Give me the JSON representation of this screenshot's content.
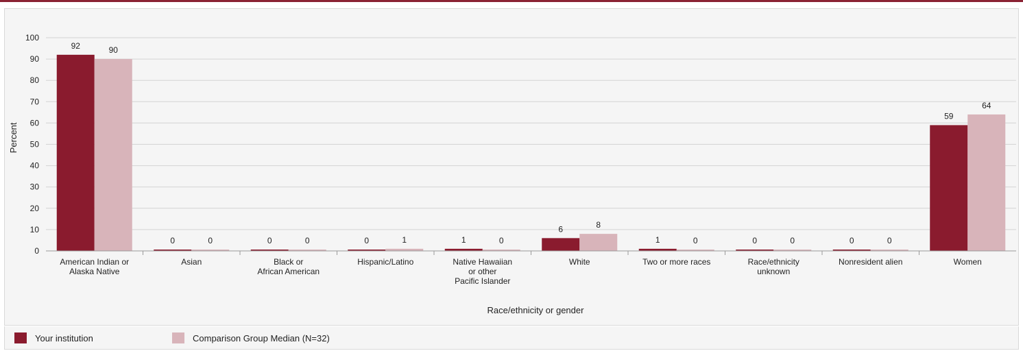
{
  "colors": {
    "your_institution": "#8a1b2e",
    "comparison": "#d8b4ba",
    "accent": "#8a2233"
  },
  "legend": {
    "your_institution": "Your institution",
    "comparison": "Comparison Group Median (N=32)"
  },
  "chart_data": {
    "type": "bar",
    "xlabel": "Race/ethnicity or gender",
    "ylabel": "Percent",
    "ylim": [
      0,
      100
    ],
    "yticks": [
      0,
      10,
      20,
      30,
      40,
      50,
      60,
      70,
      80,
      90,
      100
    ],
    "grid": true,
    "legend_position": "bottom-left",
    "categories": [
      [
        "American Indian or",
        "Alaska Native"
      ],
      [
        "Asian"
      ],
      [
        "Black or",
        "African American"
      ],
      [
        "Hispanic/Latino"
      ],
      [
        "Native Hawaiian",
        "or other",
        "Pacific Islander"
      ],
      [
        "White"
      ],
      [
        "Two or more races"
      ],
      [
        "Race/ethnicity",
        "unknown"
      ],
      [
        "Nonresident alien"
      ],
      [
        "Women"
      ]
    ],
    "series": [
      {
        "name": "Your institution",
        "values": [
          92,
          0,
          0,
          0,
          1,
          6,
          1,
          0,
          0,
          59
        ]
      },
      {
        "name": "Comparison Group Median (N=32)",
        "values": [
          90,
          0,
          0,
          1,
          0,
          8,
          0,
          0,
          0,
          64
        ]
      }
    ]
  }
}
